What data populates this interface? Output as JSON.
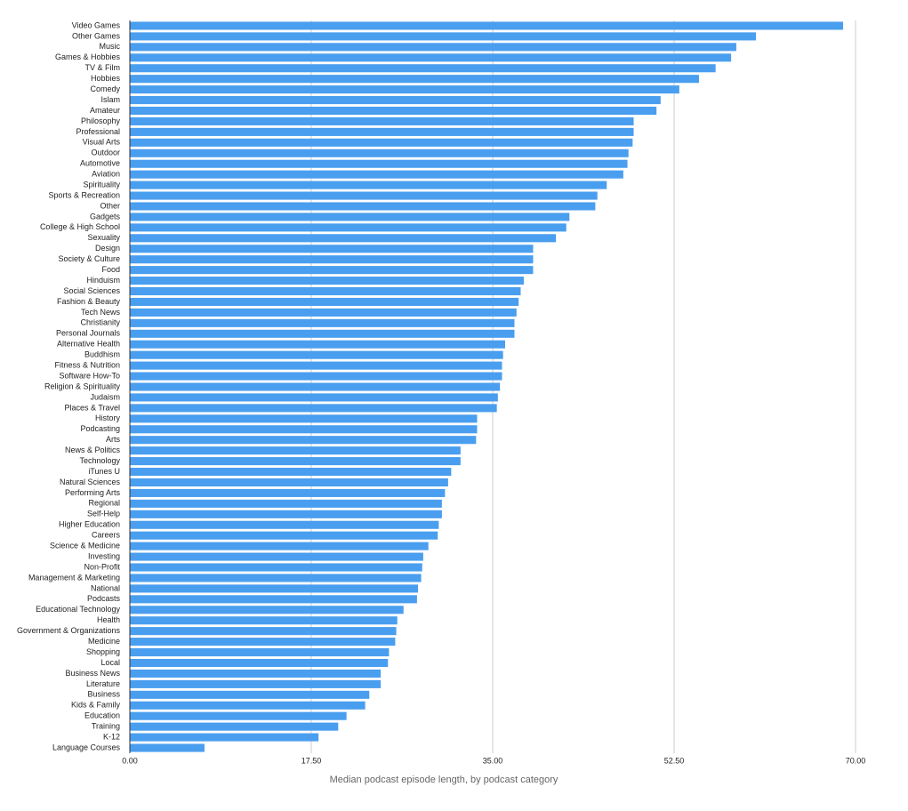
{
  "chart_data": {
    "type": "bar",
    "orientation": "horizontal",
    "xlabel": "Median podcast episode length, by podcast category",
    "categories": [
      "Video Games",
      "Other Games",
      "Music",
      "Games & Hobbies",
      "TV & Film",
      "Hobbies",
      "Comedy",
      "Islam",
      "Amateur",
      "Philosophy",
      "Professional",
      "Visual Arts",
      "Outdoor",
      "Automotive",
      "Aviation",
      "Spirituality",
      "Sports & Recreation",
      "Other",
      "Gadgets",
      "College & High School",
      "Sexuality",
      "Design",
      "Society & Culture",
      "Food",
      "Hinduism",
      "Social Sciences",
      "Fashion & Beauty",
      "Tech News",
      "Christianity",
      "Personal Journals",
      "Alternative Health",
      "Buddhism",
      "Fitness & Nutrition",
      "Software How-To",
      "Religion & Spirituality",
      "Judaism",
      "Places & Travel",
      "History",
      "Podcasting",
      "Arts",
      "News & Politics",
      "Technology",
      "iTunes U",
      "Natural Sciences",
      "Performing Arts",
      "Regional",
      "Self-Help",
      "Higher Education",
      "Careers",
      "Science & Medicine",
      "Investing",
      "Non-Profit",
      "Management & Marketing",
      "National",
      "Podcasts",
      "Educational Technology",
      "Health",
      "Government & Organizations",
      "Medicine",
      "Shopping",
      "Local",
      "Business News",
      "Literature",
      "Business",
      "Kids & Family",
      "Education",
      "Training",
      "K-12",
      "Language Courses"
    ],
    "values": [
      68.8,
      60.4,
      58.5,
      58.0,
      56.5,
      54.9,
      53.0,
      51.2,
      50.8,
      48.6,
      48.6,
      48.5,
      48.1,
      48.0,
      47.6,
      46.0,
      45.1,
      44.9,
      42.4,
      42.1,
      41.1,
      38.9,
      38.9,
      38.9,
      38.0,
      37.7,
      37.5,
      37.3,
      37.1,
      37.1,
      36.2,
      36.0,
      35.9,
      35.9,
      35.7,
      35.5,
      35.4,
      33.5,
      33.5,
      33.4,
      31.9,
      31.9,
      31.0,
      30.7,
      30.4,
      30.1,
      30.1,
      29.8,
      29.7,
      28.8,
      28.3,
      28.2,
      28.1,
      27.8,
      27.7,
      26.4,
      25.8,
      25.7,
      25.6,
      25.0,
      24.9,
      24.2,
      24.2,
      23.1,
      22.7,
      20.9,
      20.1,
      18.2,
      7.2
    ],
    "color": "#4a9eef",
    "xlim": [
      0,
      70
    ],
    "xticks": [
      {
        "value": 0,
        "label": "0.00"
      },
      {
        "value": 17.5,
        "label": "17.50"
      },
      {
        "value": 35,
        "label": "35.00"
      },
      {
        "value": 52.5,
        "label": "52.50"
      },
      {
        "value": 70,
        "label": "70.00"
      }
    ],
    "grid": true
  }
}
